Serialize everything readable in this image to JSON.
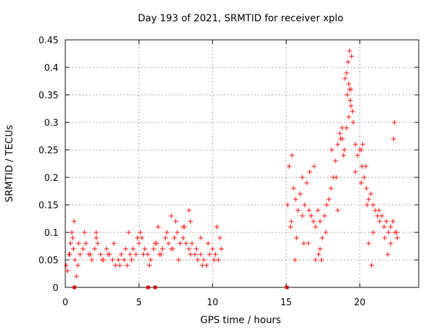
{
  "chart_data": {
    "type": "scatter",
    "title": "Day 193 of 2021, SRMTID for receiver xplo",
    "xlabel": "GPS time / hours",
    "ylabel": "SRMTID / TECUs",
    "xlim": [
      0,
      24
    ],
    "ylim": [
      0,
      0.45
    ],
    "x_ticks": [
      0,
      5,
      10,
      15,
      20
    ],
    "y_ticks": [
      0,
      0.05,
      0.1,
      0.15,
      0.2,
      0.25,
      0.3,
      0.35,
      0.4,
      0.45
    ],
    "x_tick_labels": [
      "0",
      "5",
      "10",
      "15",
      "20"
    ],
    "y_tick_labels": [
      "0",
      "0.05",
      "0.1",
      "0.15",
      "0.2",
      "0.25",
      "0.3",
      "0.35",
      "0.4",
      "0.45"
    ],
    "grid": true,
    "marker": "+",
    "color": "#ff0000",
    "gap_marker_color": "#dd0000",
    "gap_markers_x": [
      0.62,
      5.62,
      6.1,
      15.05
    ],
    "series": [
      {
        "name": "SRMTID",
        "x": [
          0.05,
          0.15,
          0.25,
          0.35,
          0.45,
          0.55,
          0.65,
          0.75,
          0.85,
          1.0,
          1.2,
          1.4,
          1.6,
          1.8,
          2.0,
          2.2,
          2.4,
          2.6,
          2.8,
          3.0,
          3.2,
          3.4,
          3.6,
          3.8,
          4.0,
          4.2,
          4.4,
          4.6,
          4.8,
          5.0,
          5.2,
          5.4,
          5.6,
          5.8,
          6.0,
          6.2,
          6.4,
          6.6,
          6.8,
          7.0,
          7.2,
          7.4,
          7.6,
          7.8,
          8.0,
          8.2,
          8.4,
          8.6,
          8.8,
          9.0,
          9.2,
          9.4,
          9.6,
          9.8,
          10.0,
          10.2,
          10.4,
          10.6,
          0.3,
          0.5,
          0.9,
          1.3,
          1.7,
          2.1,
          2.5,
          2.9,
          3.3,
          3.7,
          4.1,
          4.5,
          4.9,
          5.3,
          5.7,
          6.1,
          6.5,
          6.9,
          7.3,
          7.7,
          8.1,
          8.5,
          8.9,
          9.3,
          9.7,
          10.1,
          10.5,
          7.2,
          7.5,
          8.0,
          8.4,
          8.5,
          6.3,
          2.1,
          5.1,
          9.2,
          10.3,
          0.6,
          4.3,
          15.1,
          15.2,
          15.35,
          15.5,
          15.65,
          15.8,
          15.95,
          16.1,
          16.25,
          16.4,
          16.55,
          16.7,
          16.85,
          17.0,
          17.15,
          17.3,
          17.45,
          17.6,
          17.75,
          17.9,
          18.05,
          18.2,
          18.35,
          18.5,
          18.65,
          18.8,
          18.95,
          19.1,
          19.25,
          19.4,
          19.55,
          19.7,
          19.85,
          20.0,
          20.15,
          20.3,
          20.45,
          20.6,
          20.75,
          20.9,
          21.05,
          21.2,
          21.35,
          21.5,
          21.65,
          21.8,
          21.95,
          22.1,
          22.25,
          22.4,
          22.55,
          15.3,
          15.7,
          16.1,
          16.5,
          16.9,
          17.3,
          17.7,
          18.1,
          18.5,
          18.9,
          19.3,
          19.7,
          20.1,
          20.5,
          20.9,
          21.3,
          21.7,
          22.1,
          22.5,
          19.1,
          19.2,
          19.15,
          19.3,
          19.25,
          19.35,
          18.8,
          18.7,
          19.0,
          19.4,
          19.5,
          20.2,
          20.1,
          20.4,
          20.6,
          17.2,
          17.4,
          15.4,
          16.6,
          22.3,
          22.35,
          21.9,
          20.8,
          17.0,
          16.2,
          18.4,
          19.45,
          15.6
        ],
        "y": [
          0.04,
          0.03,
          0.06,
          0.08,
          0.1,
          0.07,
          0.05,
          0.02,
          0.04,
          0.06,
          0.07,
          0.08,
          0.06,
          0.05,
          0.07,
          0.08,
          0.06,
          0.05,
          0.07,
          0.06,
          0.05,
          0.04,
          0.05,
          0.06,
          0.05,
          0.04,
          0.06,
          0.07,
          0.06,
          0.08,
          0.09,
          0.07,
          0.06,
          0.05,
          0.07,
          0.08,
          0.06,
          0.07,
          0.09,
          0.08,
          0.07,
          0.09,
          0.1,
          0.08,
          0.09,
          0.08,
          0.07,
          0.08,
          0.06,
          0.05,
          0.06,
          0.05,
          0.04,
          0.06,
          0.07,
          0.06,
          0.05,
          0.07,
          0.06,
          0.09,
          0.08,
          0.1,
          0.06,
          0.09,
          0.05,
          0.06,
          0.08,
          0.04,
          0.07,
          0.05,
          0.09,
          0.06,
          0.04,
          0.08,
          0.06,
          0.1,
          0.07,
          0.05,
          0.11,
          0.06,
          0.07,
          0.04,
          0.08,
          0.05,
          0.09,
          0.13,
          0.12,
          0.11,
          0.14,
          0.12,
          0.11,
          0.1,
          0.1,
          0.09,
          0.11,
          0.12,
          0.1,
          0.15,
          0.22,
          0.12,
          0.18,
          0.16,
          0.14,
          0.17,
          0.13,
          0.15,
          0.19,
          0.14,
          0.13,
          0.12,
          0.11,
          0.14,
          0.12,
          0.09,
          0.13,
          0.15,
          0.16,
          0.18,
          0.2,
          0.23,
          0.26,
          0.28,
          0.27,
          0.25,
          0.29,
          0.31,
          0.33,
          0.3,
          0.26,
          0.24,
          0.25,
          0.22,
          0.2,
          0.18,
          0.16,
          0.17,
          0.15,
          0.14,
          0.13,
          0.12,
          0.13,
          0.11,
          0.12,
          0.1,
          0.11,
          0.12,
          0.1,
          0.09,
          0.11,
          0.09,
          0.2,
          0.08,
          0.22,
          0.07,
          0.1,
          0.25,
          0.14,
          0.24,
          0.36,
          0.21,
          0.19,
          0.15,
          0.1,
          0.14,
          0.09,
          0.08,
          0.1,
          0.39,
          0.41,
          0.35,
          0.43,
          0.37,
          0.34,
          0.29,
          0.27,
          0.38,
          0.36,
          0.32,
          0.26,
          0.25,
          0.22,
          0.08,
          0.06,
          0.05,
          0.24,
          0.21,
          0.27,
          0.3,
          0.06,
          0.04,
          0.05,
          0.08,
          0.2,
          0.42,
          0.05
        ]
      }
    ]
  }
}
